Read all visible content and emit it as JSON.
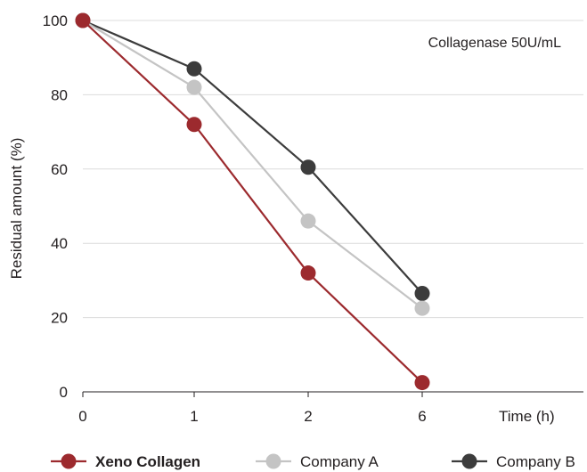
{
  "chart_data": {
    "type": "line",
    "title": "",
    "annotation": "Collagenase 50U/mL",
    "xlabel": "Time (h)",
    "ylabel": "Residual amount (%)",
    "categories": [
      "0",
      "1",
      "2",
      "6"
    ],
    "ylim": [
      0,
      100
    ],
    "yticks": [
      "0",
      "20",
      "40",
      "60",
      "80",
      "100"
    ],
    "grid": "horizontal",
    "legend_position": "bottom",
    "series": [
      {
        "name": "Xeno Collagen",
        "values": [
          100,
          72,
          32,
          2.5
        ],
        "color": "#9c2a2e",
        "bold_label": true
      },
      {
        "name": "Company A",
        "values": [
          100,
          82,
          46,
          22.5
        ],
        "color": "#c4c4c4",
        "bold_label": false
      },
      {
        "name": "Company B",
        "values": [
          100,
          87,
          60.5,
          26.5
        ],
        "color": "#3c3c3c",
        "bold_label": false
      }
    ]
  }
}
